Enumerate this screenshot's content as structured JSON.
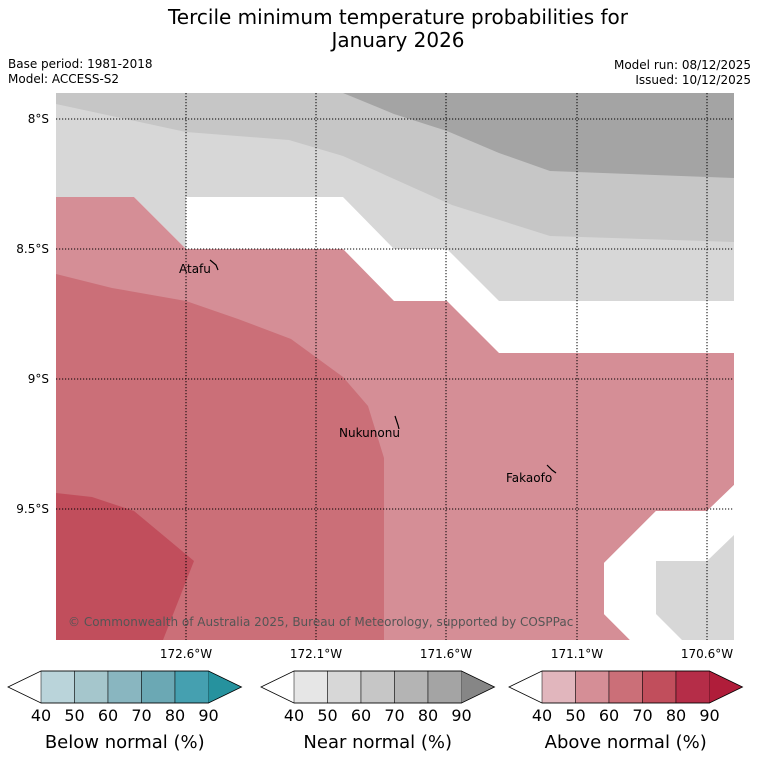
{
  "title_line1": "Tercile minimum temperature probabilities for",
  "title_line2": "January 2026",
  "base_period": "Base period: 1981-2018",
  "model": "Model: ACCESS-S2",
  "model_run": "Model run: 08/12/2025",
  "issued": "Issued: 10/12/2025",
  "lat_labels": [
    "8°S",
    "8.5°S",
    "9°S",
    "9.5°S"
  ],
  "lon_labels": [
    "172.6°W",
    "172.1°W",
    "171.6°W",
    "171.1°W",
    "170.6°W"
  ],
  "places": [
    "Atafu",
    "Nukunonu",
    "Fakaofo"
  ],
  "copyright": "© Commonwealth of Australia 2025, Bureau of Meteorology, supported by COSPPac",
  "colorbars": [
    {
      "label": "Below normal (%)",
      "ticks": [
        "40",
        "50",
        "60",
        "70",
        "80",
        "90"
      ],
      "colors": [
        "#ffffff",
        "#bad4da",
        "#a5c6cc",
        "#89b6c0",
        "#6ba8b4",
        "#45a0b0",
        "#26929e"
      ]
    },
    {
      "label": "Near normal (%)",
      "ticks": [
        "40",
        "50",
        "60",
        "70",
        "80",
        "90"
      ],
      "colors": [
        "#ffffff",
        "#e6e6e6",
        "#d7d7d7",
        "#c6c6c6",
        "#b4b4b4",
        "#a4a4a4",
        "#868686"
      ]
    },
    {
      "label": "Above normal (%)",
      "ticks": [
        "40",
        "50",
        "60",
        "70",
        "80",
        "90"
      ],
      "colors": [
        "#ffffff",
        "#e1b6bd",
        "#d58e96",
        "#cb6f78",
        "#c14e5c",
        "#b52d48",
        "#b01d3a"
      ]
    }
  ]
}
